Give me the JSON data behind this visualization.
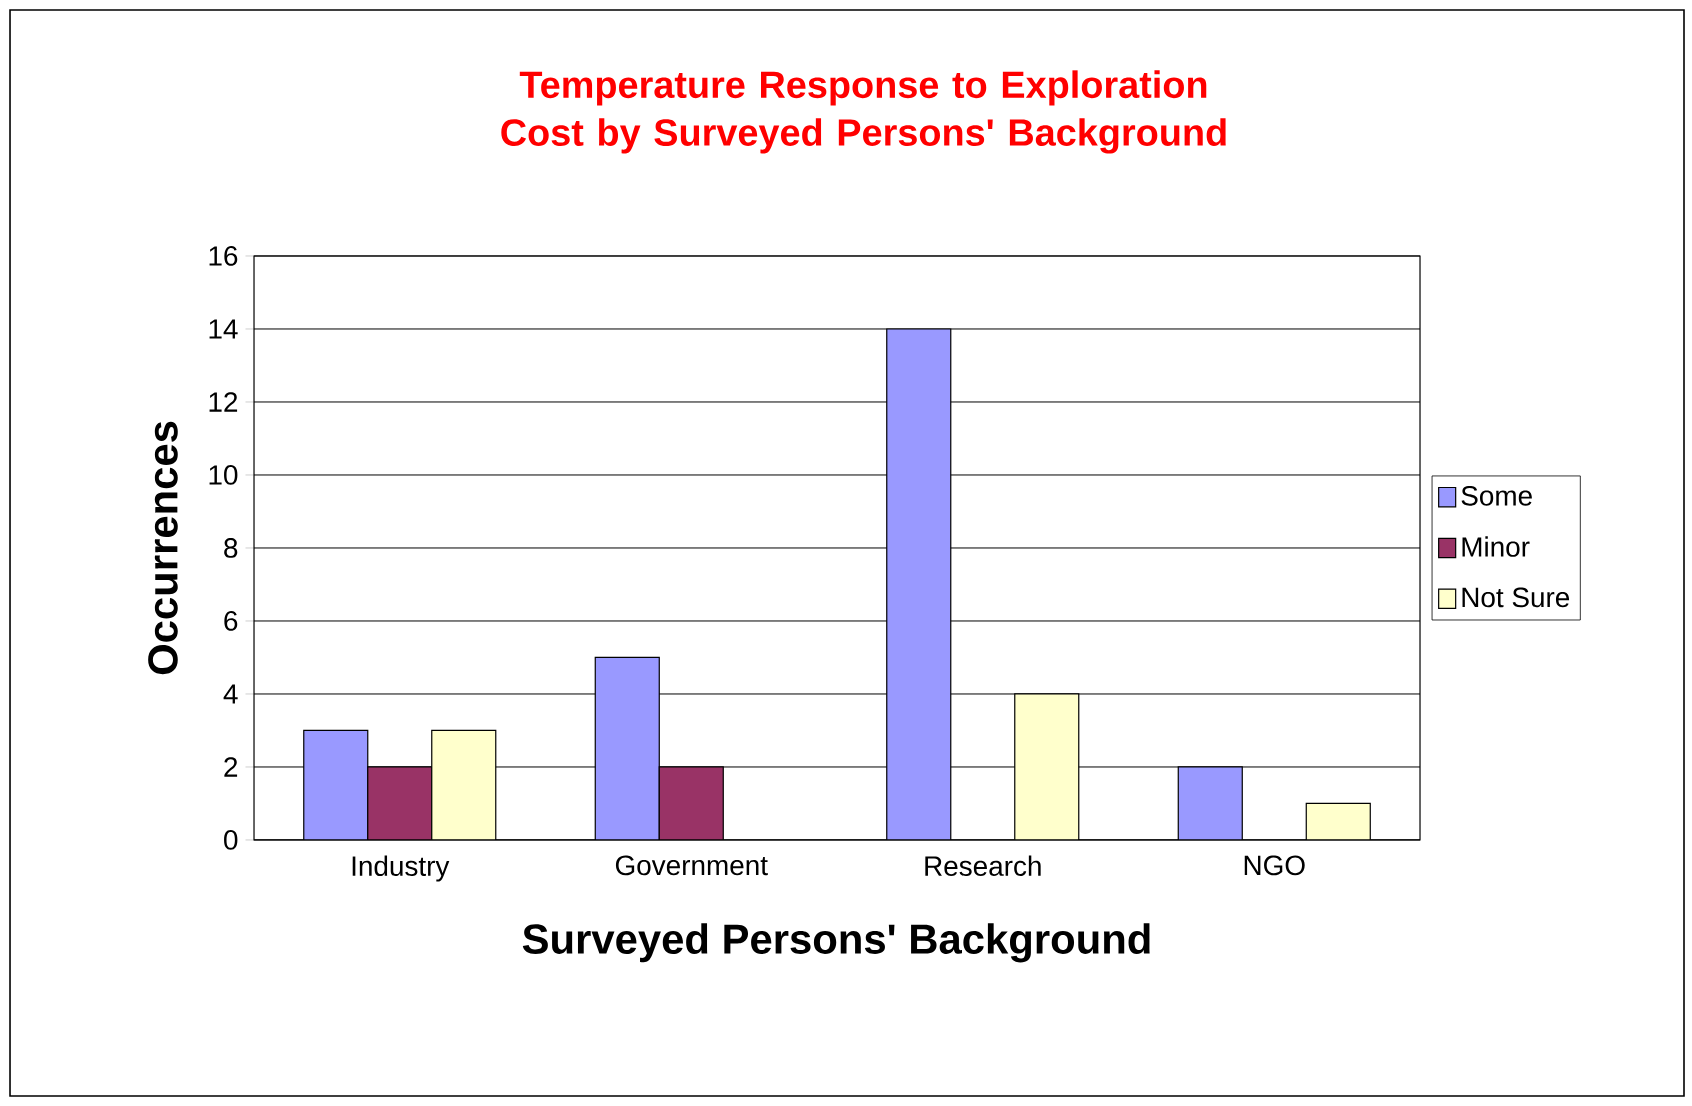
{
  "chart_data": {
    "type": "bar",
    "title": "Temperature Response to Exploration Cost by Surveyed Persons' Background",
    "xlabel": "Surveyed Persons' Background",
    "ylabel": "Occurrences",
    "categories": [
      "Industry",
      "Government",
      "Research",
      "NGO"
    ],
    "series": [
      {
        "name": "Some",
        "color": "#9999ff",
        "values": [
          3,
          5,
          14,
          2
        ]
      },
      {
        "name": "Minor",
        "color": "#993366",
        "values": [
          2,
          2,
          null,
          null
        ]
      },
      {
        "name": "Not Sure",
        "color": "#ffffcc",
        "values": [
          3,
          null,
          4,
          1
        ]
      }
    ],
    "ylim": [
      0,
      16
    ],
    "yticks": [
      0,
      2,
      4,
      6,
      8,
      10,
      12,
      14,
      16
    ],
    "grid": "y",
    "legend": "right"
  }
}
